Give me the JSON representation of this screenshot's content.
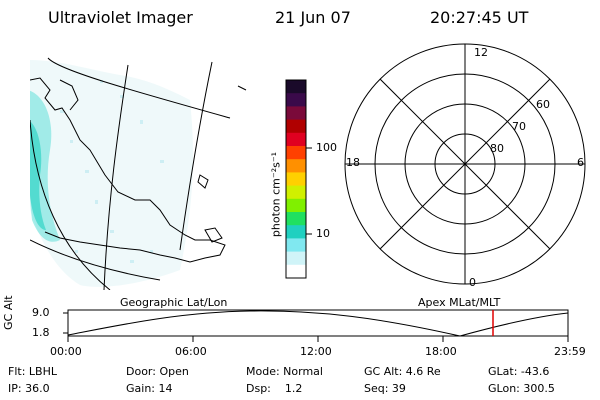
{
  "header": {
    "title": "Ultraviolet Imager",
    "date": "21 Jun 07",
    "time": "20:27:45 UT"
  },
  "map_panel": {
    "label": "Geographic Lat/Lon"
  },
  "colorbar": {
    "unit_label": "photon cm⁻²s⁻¹",
    "ticks": [
      "100",
      "10"
    ],
    "colors": [
      "#1a0a2a",
      "#3a0a4a",
      "#7a0a3a",
      "#b00000",
      "#e00020",
      "#ff4000",
      "#ff9000",
      "#ffd000",
      "#d0f000",
      "#80f000",
      "#20e060",
      "#20d0c0",
      "#80e8f0",
      "#d0f4f8",
      "#ffffff"
    ]
  },
  "polar_panel": {
    "label": "Apex MLat/MLT",
    "mlt_labels": {
      "top": "12",
      "bottom": "0",
      "left": "18",
      "right": "6"
    },
    "lat_labels": [
      "60",
      "70",
      "80"
    ]
  },
  "timeline": {
    "ylabel": "GC Alt",
    "ytick_top": "9.0",
    "ytick_bottom": "1.8",
    "xticks": [
      "00:00",
      "06:00",
      "12:00",
      "18:00",
      "23:59"
    ],
    "current_marker_color": "#e00000"
  },
  "status": {
    "filter_label": "Flt: LBHL",
    "ip_label": "IP: 36.0",
    "door_label": "Door: Open",
    "gain_label": "Gain: 14",
    "mode_label": "Mode: Normal",
    "dsp_label": "Dsp:    1.2",
    "gcalt_label": "GC Alt: 4.6 Re",
    "seq_label": "Seq: 39",
    "glat_label": "GLat: -43.6",
    "glon_label": "GLon: 300.5"
  }
}
